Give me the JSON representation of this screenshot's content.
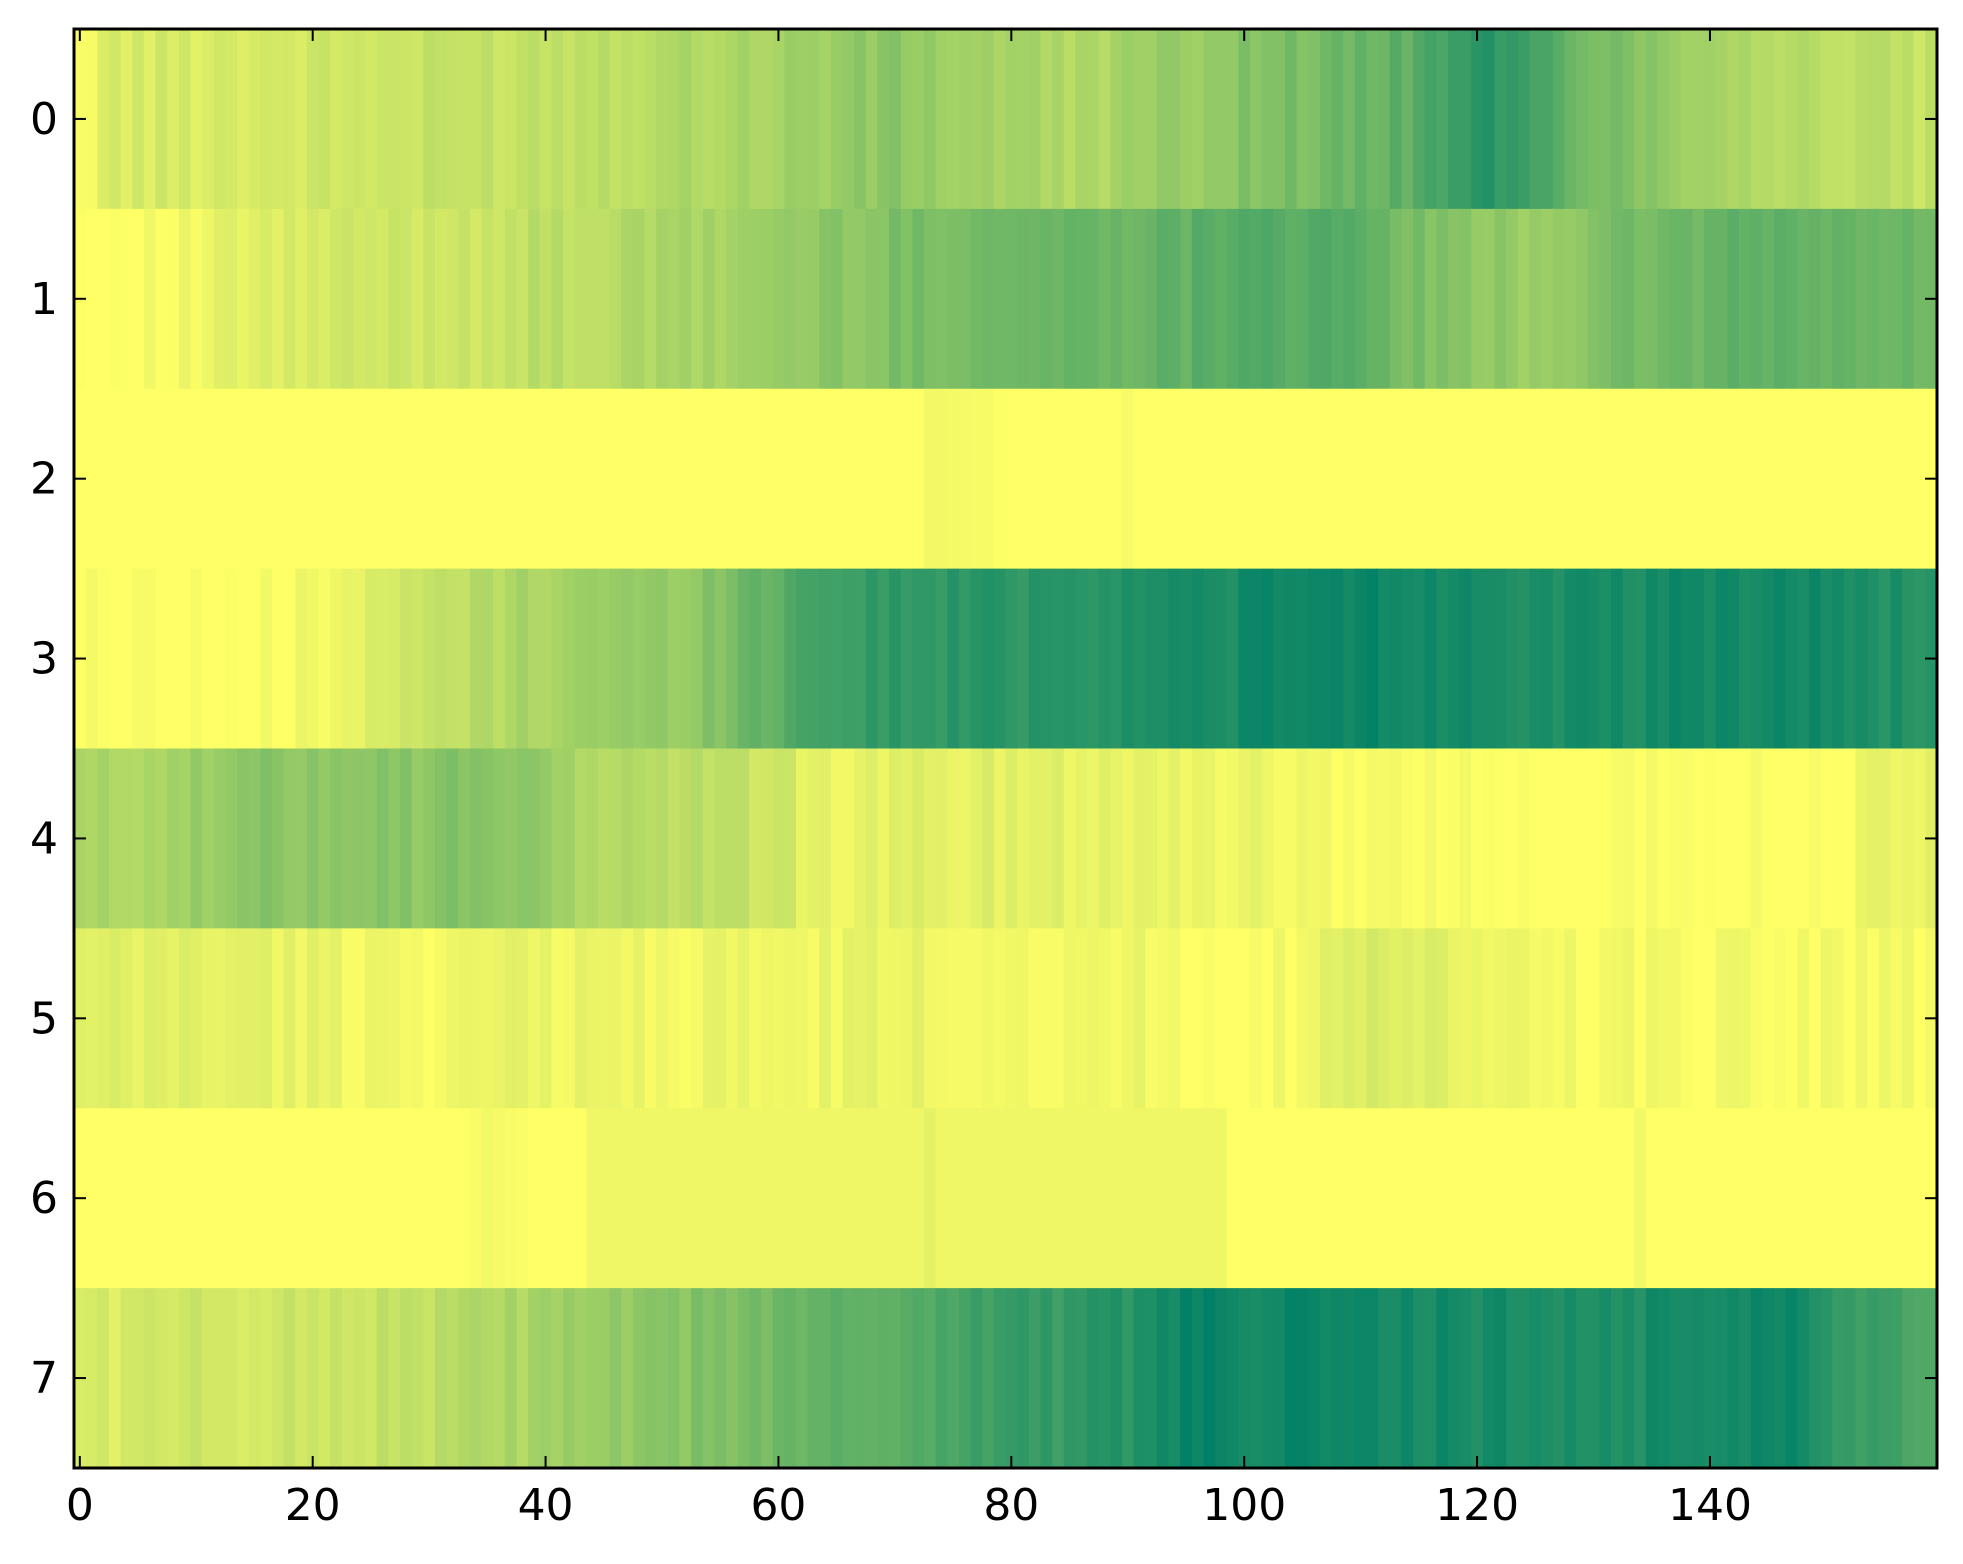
{
  "chart_data": {
    "type": "heatmap",
    "colormap": "summer_r",
    "colormap_stops": [
      "#ffff66",
      "#008066"
    ],
    "rows": [
      0,
      1,
      2,
      3,
      4,
      5,
      6,
      7
    ],
    "n_columns": 160,
    "xlim": [
      -0.5,
      159.5
    ],
    "ylim": [
      7.5,
      -0.5
    ],
    "xticks": [
      0,
      20,
      40,
      60,
      80,
      100,
      120,
      140
    ],
    "yticks": [
      0,
      1,
      2,
      3,
      4,
      5,
      6,
      7
    ],
    "value_range": [
      0,
      1
    ],
    "row_profiles": [
      {
        "row": 0,
        "knots": [
          [
            0,
            0.0
          ],
          [
            2,
            0.15
          ],
          [
            20,
            0.18
          ],
          [
            40,
            0.25
          ],
          [
            50,
            0.3
          ],
          [
            60,
            0.35
          ],
          [
            70,
            0.45
          ],
          [
            75,
            0.38
          ],
          [
            85,
            0.3
          ],
          [
            95,
            0.4
          ],
          [
            100,
            0.48
          ],
          [
            108,
            0.55
          ],
          [
            115,
            0.65
          ],
          [
            120,
            0.85
          ],
          [
            124,
            0.75
          ],
          [
            128,
            0.6
          ],
          [
            135,
            0.45
          ],
          [
            145,
            0.3
          ],
          [
            159,
            0.22
          ]
        ]
      },
      {
        "row": 1,
        "knots": [
          [
            0,
            0.0
          ],
          [
            8,
            0.02
          ],
          [
            15,
            0.12
          ],
          [
            25,
            0.18
          ],
          [
            35,
            0.22
          ],
          [
            45,
            0.28
          ],
          [
            55,
            0.35
          ],
          [
            65,
            0.45
          ],
          [
            75,
            0.55
          ],
          [
            85,
            0.58
          ],
          [
            95,
            0.62
          ],
          [
            100,
            0.7
          ],
          [
            110,
            0.62
          ],
          [
            118,
            0.45
          ],
          [
            125,
            0.4
          ],
          [
            135,
            0.55
          ],
          [
            145,
            0.62
          ],
          [
            159,
            0.55
          ]
        ]
      },
      {
        "row": 2,
        "knots": [
          [
            0,
            0.0
          ],
          [
            72,
            0.0
          ],
          [
            73,
            0.05
          ],
          [
            78,
            0.03
          ],
          [
            79,
            0.0
          ],
          [
            89,
            0.0
          ],
          [
            90,
            0.03
          ],
          [
            91,
            0.0
          ],
          [
            159,
            0.0
          ]
        ]
      },
      {
        "row": 3,
        "knots": [
          [
            0,
            0.0
          ],
          [
            18,
            0.0
          ],
          [
            19,
            0.05
          ],
          [
            25,
            0.12
          ],
          [
            30,
            0.22
          ],
          [
            40,
            0.35
          ],
          [
            45,
            0.4
          ],
          [
            50,
            0.4
          ],
          [
            55,
            0.5
          ],
          [
            60,
            0.65
          ],
          [
            65,
            0.78
          ],
          [
            75,
            0.82
          ],
          [
            85,
            0.85
          ],
          [
            100,
            0.92
          ],
          [
            110,
            0.95
          ],
          [
            120,
            0.92
          ],
          [
            130,
            0.88
          ],
          [
            140,
            0.93
          ],
          [
            150,
            0.92
          ],
          [
            159,
            0.85
          ]
        ]
      },
      {
        "row": 4,
        "knots": [
          [
            0,
            0.3
          ],
          [
            10,
            0.38
          ],
          [
            15,
            0.45
          ],
          [
            25,
            0.48
          ],
          [
            30,
            0.45
          ],
          [
            35,
            0.5
          ],
          [
            40,
            0.38
          ],
          [
            45,
            0.3
          ],
          [
            50,
            0.28
          ],
          [
            55,
            0.25
          ],
          [
            60,
            0.2
          ],
          [
            63,
            0.08
          ],
          [
            70,
            0.1
          ],
          [
            80,
            0.12
          ],
          [
            90,
            0.1
          ],
          [
            100,
            0.07
          ],
          [
            110,
            0.03
          ],
          [
            120,
            0.0
          ],
          [
            150,
            0.0
          ],
          [
            159,
            0.12
          ]
        ]
      },
      {
        "row": 5,
        "knots": [
          [
            0,
            0.1
          ],
          [
            10,
            0.12
          ],
          [
            20,
            0.08
          ],
          [
            30,
            0.05
          ],
          [
            40,
            0.08
          ],
          [
            50,
            0.06
          ],
          [
            60,
            0.06
          ],
          [
            70,
            0.08
          ],
          [
            80,
            0.06
          ],
          [
            90,
            0.06
          ],
          [
            98,
            0.0
          ],
          [
            105,
            0.04
          ],
          [
            112,
            0.16
          ],
          [
            118,
            0.08
          ],
          [
            130,
            0.04
          ],
          [
            145,
            0.04
          ],
          [
            159,
            0.02
          ]
        ]
      },
      {
        "row": 6,
        "knots": [
          [
            0,
            0.0
          ],
          [
            33,
            0.0
          ],
          [
            35,
            0.05
          ],
          [
            39,
            0.0
          ],
          [
            43,
            0.0
          ],
          [
            44,
            0.06
          ],
          [
            72,
            0.06
          ],
          [
            73,
            0.1
          ],
          [
            74,
            0.06
          ],
          [
            98,
            0.06
          ],
          [
            99,
            0.0
          ],
          [
            133,
            0.0
          ],
          [
            134,
            0.05
          ],
          [
            135,
            0.0
          ],
          [
            159,
            0.0
          ]
        ]
      },
      {
        "row": 7,
        "knots": [
          [
            0,
            0.15
          ],
          [
            10,
            0.18
          ],
          [
            20,
            0.2
          ],
          [
            30,
            0.25
          ],
          [
            40,
            0.35
          ],
          [
            48,
            0.42
          ],
          [
            55,
            0.5
          ],
          [
            62,
            0.58
          ],
          [
            70,
            0.65
          ],
          [
            75,
            0.72
          ],
          [
            80,
            0.78
          ],
          [
            85,
            0.8
          ],
          [
            90,
            0.85
          ],
          [
            95,
            0.95
          ],
          [
            100,
            0.95
          ],
          [
            110,
            0.93
          ],
          [
            120,
            0.9
          ],
          [
            130,
            0.88
          ],
          [
            140,
            0.92
          ],
          [
            148,
            0.95
          ],
          [
            152,
            0.8
          ],
          [
            159,
            0.7
          ]
        ]
      }
    ]
  }
}
